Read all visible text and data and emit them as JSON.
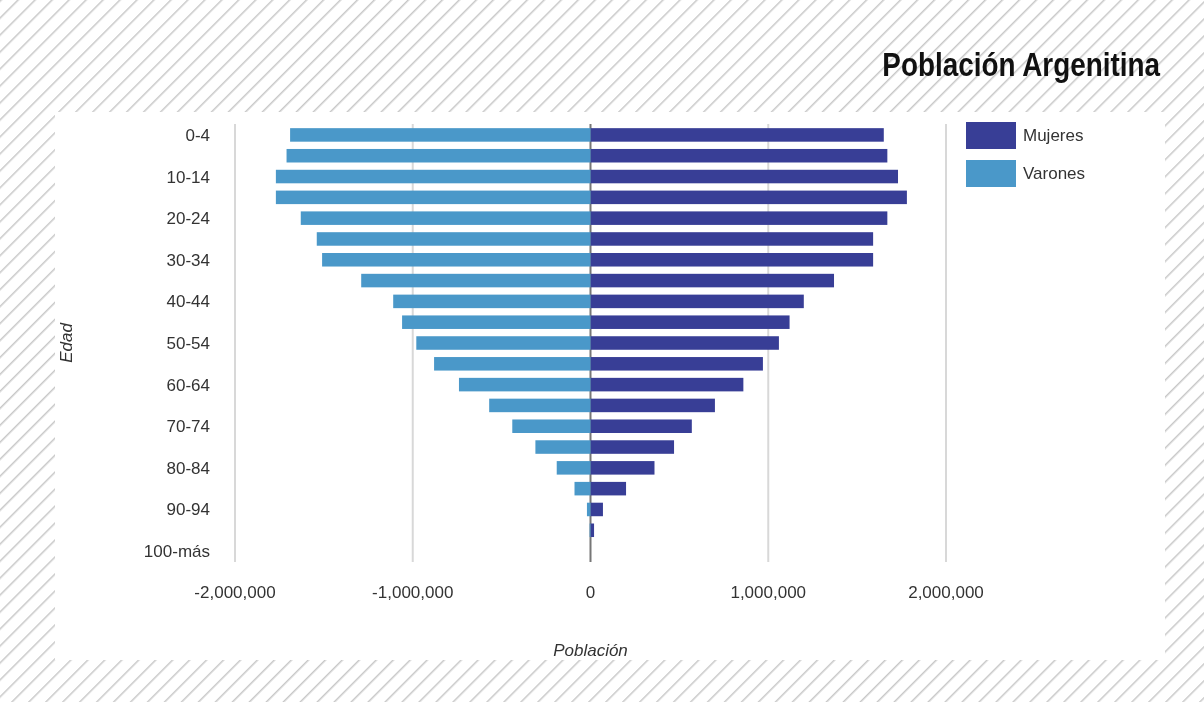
{
  "chart_data": {
    "type": "bar",
    "orientation": "horizontal",
    "title": "Población Argenitina",
    "xlabel": "Población",
    "ylabel": "Edad",
    "categories": [
      "0-4",
      null,
      "10-14",
      null,
      "20-24",
      null,
      "30-34",
      null,
      "40-44",
      null,
      "50-54",
      null,
      "60-64",
      null,
      "70-74",
      null,
      "80-84",
      null,
      "90-94",
      null,
      "100-más"
    ],
    "series": [
      {
        "name": "Mujeres",
        "color": "#383e96",
        "values": [
          1650000,
          1670000,
          1730000,
          1780000,
          1670000,
          1590000,
          1590000,
          1370000,
          1200000,
          1120000,
          1060000,
          970000,
          860000,
          700000,
          570000,
          470000,
          360000,
          200000,
          70000,
          20000,
          0
        ]
      },
      {
        "name": "Varones",
        "color": "#4a98c9",
        "values": [
          -1690000,
          -1710000,
          -1770000,
          -1770000,
          -1630000,
          -1540000,
          -1510000,
          -1290000,
          -1110000,
          -1060000,
          -980000,
          -880000,
          -740000,
          -570000,
          -440000,
          -310000,
          -190000,
          -90000,
          -20000,
          -5000,
          0
        ]
      }
    ],
    "xlim": [
      -2000000,
      2000000
    ],
    "xticks": [
      {
        "value": -2000000,
        "label": "-2,000,000"
      },
      {
        "value": -1000000,
        "label": "-1,000,000"
      },
      0,
      {
        "value": 1000000,
        "label": "1,000,000"
      },
      {
        "value": 2000000,
        "label": "2,000,000"
      }
    ],
    "grid": "x",
    "legend": "right",
    "stacked": true
  }
}
